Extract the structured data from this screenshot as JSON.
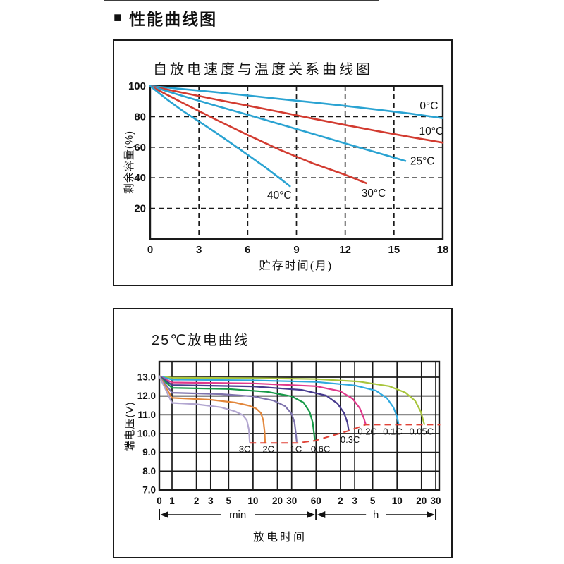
{
  "page": {
    "section_marker": "■",
    "section_title": "性能曲线图"
  },
  "chart_data": [
    {
      "type": "line",
      "title": "自放电速度与温度关系曲线图",
      "xlabel": "贮存时间(月)",
      "ylabel": "剩余容量(%)",
      "xlim": [
        0,
        18
      ],
      "ylim": [
        0,
        100
      ],
      "grid": "dashed",
      "grid_color": "#1a1a1a",
      "xticks": [
        {
          "v": 0,
          "label": "0"
        },
        {
          "v": 3,
          "label": "3"
        },
        {
          "v": 6,
          "label": "6"
        },
        {
          "v": 9,
          "label": "9"
        },
        {
          "v": 12,
          "label": "12"
        },
        {
          "v": 15,
          "label": "15"
        },
        {
          "v": 18,
          "label": "18"
        }
      ],
      "yticks": [
        {
          "v": 20,
          "label": "20"
        },
        {
          "v": 40,
          "label": "40"
        },
        {
          "v": 60,
          "label": "60"
        },
        {
          "v": 80,
          "label": "80"
        },
        {
          "v": 100,
          "label": "100"
        }
      ],
      "series": [
        {
          "name": "0°C",
          "color": "#2aa3d2",
          "points": [
            [
              0,
              100
            ],
            [
              2,
              98
            ],
            [
              4,
              96
            ],
            [
              6,
              93.8
            ],
            [
              8,
              91.5
            ],
            [
              10,
              89.3
            ],
            [
              12,
              87
            ],
            [
              14,
              84.5
            ],
            [
              16,
              82
            ],
            [
              18,
              79
            ]
          ],
          "label_pos": [
            17.15,
            87
          ]
        },
        {
          "name": "10°C",
          "color": "#d23b30",
          "points": [
            [
              0,
              100
            ],
            [
              2,
              95.6
            ],
            [
              4,
              91.3
            ],
            [
              6,
              87.2
            ],
            [
              8,
              83
            ],
            [
              10,
              78.7
            ],
            [
              12,
              74.5
            ],
            [
              14,
              70.5
            ],
            [
              16,
              66.7
            ],
            [
              18,
              63
            ]
          ],
          "label_pos": [
            17.3,
            70.5
          ]
        },
        {
          "name": "25°C",
          "color": "#2aa3d2",
          "points": [
            [
              0,
              100
            ],
            [
              2,
              93.5
            ],
            [
              4,
              87.3
            ],
            [
              6,
              81.2
            ],
            [
              8,
              75
            ],
            [
              10,
              68.8
            ],
            [
              12,
              62.5
            ],
            [
              14,
              56.3
            ],
            [
              15.7,
              51
            ]
          ],
          "label_pos": [
            16.75,
            51
          ]
        },
        {
          "name": "30°C",
          "color": "#d23b30",
          "points": [
            [
              0,
              100
            ],
            [
              2,
              89
            ],
            [
              4,
              78.3
            ],
            [
              6,
              68
            ],
            [
              8,
              58.2
            ],
            [
              10,
              49.5
            ],
            [
              12,
              42
            ],
            [
              13.3,
              36.5
            ]
          ],
          "label_pos": [
            13.75,
            30
          ]
        },
        {
          "name": "40°C",
          "color": "#2aa3d2",
          "points": [
            [
              0,
              100
            ],
            [
              1,
              91.5
            ],
            [
              2,
              83.8
            ],
            [
              3,
              76.8
            ],
            [
              4,
              69.8
            ],
            [
              5,
              62.5
            ],
            [
              6,
              55
            ],
            [
              7,
              47.5
            ],
            [
              8,
              39.5
            ],
            [
              8.6,
              34.5
            ]
          ],
          "label_pos": [
            7.95,
            28.5
          ]
        }
      ]
    },
    {
      "type": "line",
      "xscale": "log-min-h",
      "title": "25℃放电曲线",
      "xlabel": "放电时间",
      "ylabel": "端电压(V)",
      "ylim": [
        7,
        13.83
      ],
      "grid": "solid",
      "grid_color": "#1a1a1a",
      "yticks": [
        {
          "v": 7,
          "label": "7.0"
        },
        {
          "v": 8,
          "label": "8.0"
        },
        {
          "v": 9,
          "label": "9.0"
        },
        {
          "v": 10,
          "label": "10.0"
        },
        {
          "v": 11,
          "label": "11.0"
        },
        {
          "v": 12,
          "label": "12.0"
        },
        {
          "v": 13,
          "label": "13.0"
        }
      ],
      "xticks_min": [
        {
          "t": 0,
          "label": "0"
        },
        {
          "t": 1,
          "label": "1"
        },
        {
          "t": 2,
          "label": "2"
        },
        {
          "t": 3,
          "label": "3"
        },
        {
          "t": 5,
          "label": "5"
        },
        {
          "t": 10,
          "label": "10"
        },
        {
          "t": 20,
          "label": "20"
        },
        {
          "t": 30,
          "label": "30"
        },
        {
          "t": 60,
          "label": "60"
        }
      ],
      "xticks_h": [
        {
          "t": 120,
          "label": "2"
        },
        {
          "t": 180,
          "label": "3"
        },
        {
          "t": 300,
          "label": "5"
        },
        {
          "t": 600,
          "label": "10"
        },
        {
          "t": 1200,
          "label": "20"
        },
        {
          "t": 1800,
          "label": "30"
        }
      ],
      "unit_spans": [
        {
          "label": "min",
          "from": 0,
          "to": 60
        },
        {
          "label": "h",
          "from": 60,
          "to": 1800
        }
      ],
      "series": [
        {
          "name": "0.05C",
          "color": "#a8c53c",
          "points": [
            [
              0,
              13.05
            ],
            [
              1,
              12.97
            ],
            [
              10,
              12.95
            ],
            [
              60,
              12.9
            ],
            [
              200,
              12.77
            ],
            [
              480,
              12.52
            ],
            [
              760,
              12.18
            ],
            [
              1000,
              11.75
            ],
            [
              1180,
              11.15
            ],
            [
              1300,
              10.5
            ]
          ],
          "label_pos": [
            1200,
            10.1
          ]
        },
        {
          "name": "0.1C",
          "color": "#2fa9df",
          "points": [
            [
              0,
              13.05
            ],
            [
              1,
              12.87
            ],
            [
              10,
              12.83
            ],
            [
              60,
              12.75
            ],
            [
              180,
              12.56
            ],
            [
              330,
              12.28
            ],
            [
              450,
              11.88
            ],
            [
              540,
              11.4
            ],
            [
              600,
              10.9
            ],
            [
              628,
              10.47
            ]
          ],
          "label_pos": [
            530,
            10.1
          ]
        },
        {
          "name": "0.2C",
          "color": "#e0398c",
          "points": [
            [
              0,
              13.05
            ],
            [
              1,
              12.72
            ],
            [
              10,
              12.67
            ],
            [
              60,
              12.52
            ],
            [
              120,
              12.25
            ],
            [
              170,
              11.85
            ],
            [
              208,
              11.35
            ],
            [
              232,
              10.85
            ],
            [
              246,
              10.5
            ]
          ],
          "label_pos": [
            258,
            10.1
          ]
        },
        {
          "name": "0.3C",
          "color": "#473a8e",
          "points": [
            [
              0,
              13.05
            ],
            [
              1,
              12.58
            ],
            [
              10,
              12.51
            ],
            [
              40,
              12.32
            ],
            [
              80,
              12.02
            ],
            [
              110,
              11.6
            ],
            [
              133,
              11.1
            ],
            [
              146,
              10.6
            ],
            [
              152,
              10.15
            ]
          ],
          "label_pos": [
            158,
            9.66
          ]
        },
        {
          "name": "0.6C",
          "color": "#169a47",
          "points": [
            [
              0,
              13.05
            ],
            [
              1,
              12.43
            ],
            [
              5,
              12.37
            ],
            [
              15,
              12.22
            ],
            [
              30,
              11.98
            ],
            [
              42,
              11.65
            ],
            [
              50,
              11.15
            ],
            [
              54.5,
              10.6
            ],
            [
              57,
              9.9
            ],
            [
              57.8,
              9.62
            ]
          ],
          "label_pos": [
            68,
            9.15
          ]
        },
        {
          "name": "1C",
          "color": "#7e73ad",
          "points": [
            [
              0,
              13.05
            ],
            [
              1,
              12.17
            ],
            [
              4,
              12.1
            ],
            [
              10,
              11.98
            ],
            [
              18,
              11.75
            ],
            [
              25,
              11.45
            ],
            [
              30,
              11.05
            ],
            [
              32.5,
              10.6
            ],
            [
              34,
              9.9
            ],
            [
              34.6,
              9.58
            ]
          ],
          "label_pos": [
            34,
            9.15
          ]
        },
        {
          "name": "2C",
          "color": "#e2863a",
          "points": [
            [
              0,
              13.05
            ],
            [
              1,
              11.9
            ],
            [
              3,
              11.8
            ],
            [
              6,
              11.65
            ],
            [
              9,
              11.48
            ],
            [
              11,
              11.32
            ],
            [
              12.5,
              11.1
            ],
            [
              13.4,
              10.7
            ],
            [
              13.9,
              10.1
            ],
            [
              14.1,
              9.55
            ]
          ],
          "label_pos": [
            15.5,
            9.15
          ]
        },
        {
          "name": "3C",
          "color": "#b2a6d0",
          "points": [
            [
              0,
              13.05
            ],
            [
              1,
              11.63
            ],
            [
              2,
              11.56
            ],
            [
              4,
              11.4
            ],
            [
              6,
              11.18
            ],
            [
              7.5,
              10.98
            ],
            [
              8.4,
              10.7
            ],
            [
              8.9,
              10.2
            ],
            [
              9.1,
              9.55
            ]
          ],
          "label_pos": [
            7.9,
            9.15
          ]
        }
      ],
      "cutoff_line": {
        "name": "cutoff-voltage-dashed-line",
        "color": "#e04338",
        "points": [
          [
            9.1,
            9.5
          ],
          [
            35,
            9.5
          ],
          [
            58,
            9.62
          ],
          [
            152,
            10.15
          ],
          [
            246,
            10.47
          ],
          [
            2050,
            10.47
          ]
        ]
      }
    }
  ]
}
